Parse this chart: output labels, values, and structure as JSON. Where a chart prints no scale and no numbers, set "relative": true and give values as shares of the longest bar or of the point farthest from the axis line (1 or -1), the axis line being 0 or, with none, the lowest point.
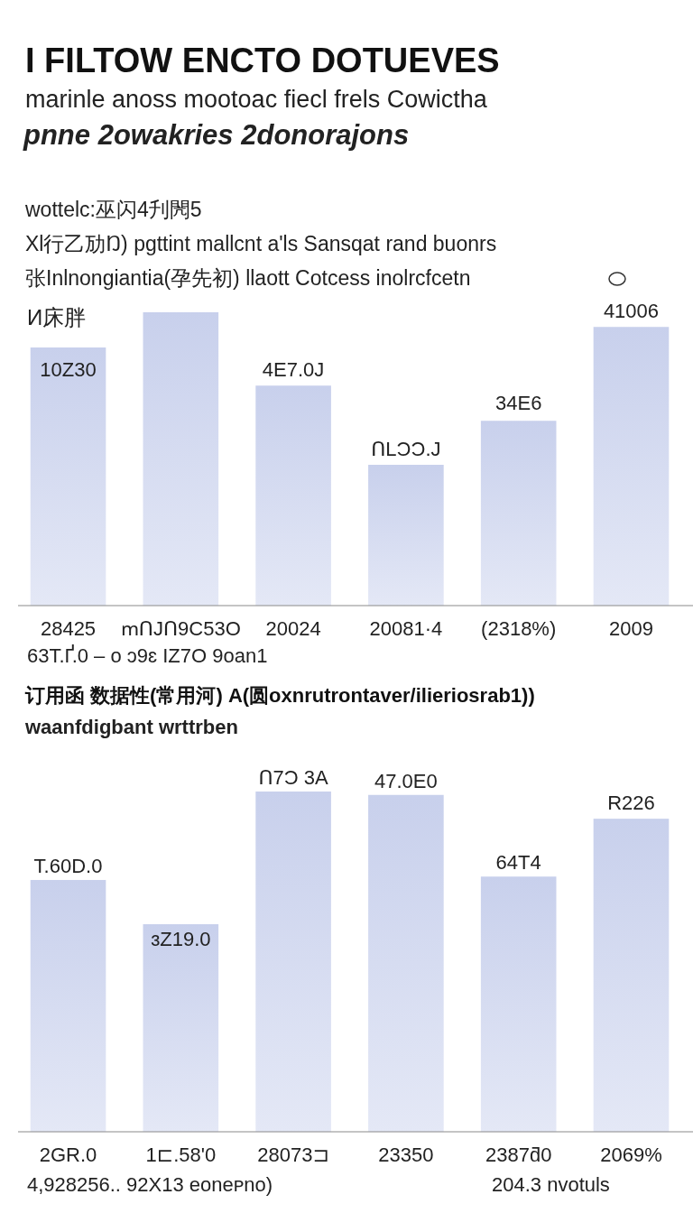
{
  "chart_data": [
    {
      "type": "bar",
      "title": "I FILTOW ENCTO DOTUEVES",
      "subtitle": "marinle anoss mootoac fiecl frels Cowictha",
      "annotations": [
        "pnne 2owakries 2donorajons",
        "wottelc:巫闪4刋閌5",
        "Xl行乙劢Ŋ) pgttint mallcnt a'ls Sansqat rand buonrs",
        "张Inlnongiantia(孕先初) llaott Cotcess inolrcfcetn",
        "И床胖",
        "10Z30",
        "4E7.0J",
        "ՈLϽϽ.J",
        "34E6",
        "41006",
        "63T.Ґ.0 – o ɔ9ɛ IZ7O 9oan1"
      ],
      "categories": [
        "28425",
        "ՠՈJՈ9С53О",
        "20024",
        "20081·4",
        "(2318%)",
        "2009"
      ],
      "values": [
        0.88,
        1,
        0.75,
        0.48,
        0.63,
        0.95
      ],
      "color": "#c8d0ec",
      "relative": true
    },
    {
      "type": "bar",
      "title": "订用函 数据性(常用河) A(圆oxnrutrontaver/ilieriosrab1))",
      "subtitle": "waanfdigbant wrttrben",
      "annotations": [
        "T.60D.0",
        "ɜZ19.0",
        "Ո7Ͻ 3A",
        "47.0E0",
        "64T4",
        "R226",
        "4,928256.. 92X13 eoneᴘno)",
        "204.3 nvotuls"
      ],
      "categories": [
        "2GR.0",
        "1⊏.58'0",
        "28073⊐",
        "23350",
        "2387ƌ0",
        "2069%"
      ],
      "values": [
        0.74,
        0.61,
        1,
        0.99,
        0.75,
        0.92
      ],
      "color": "#c8d0ec",
      "relative": true
    }
  ]
}
